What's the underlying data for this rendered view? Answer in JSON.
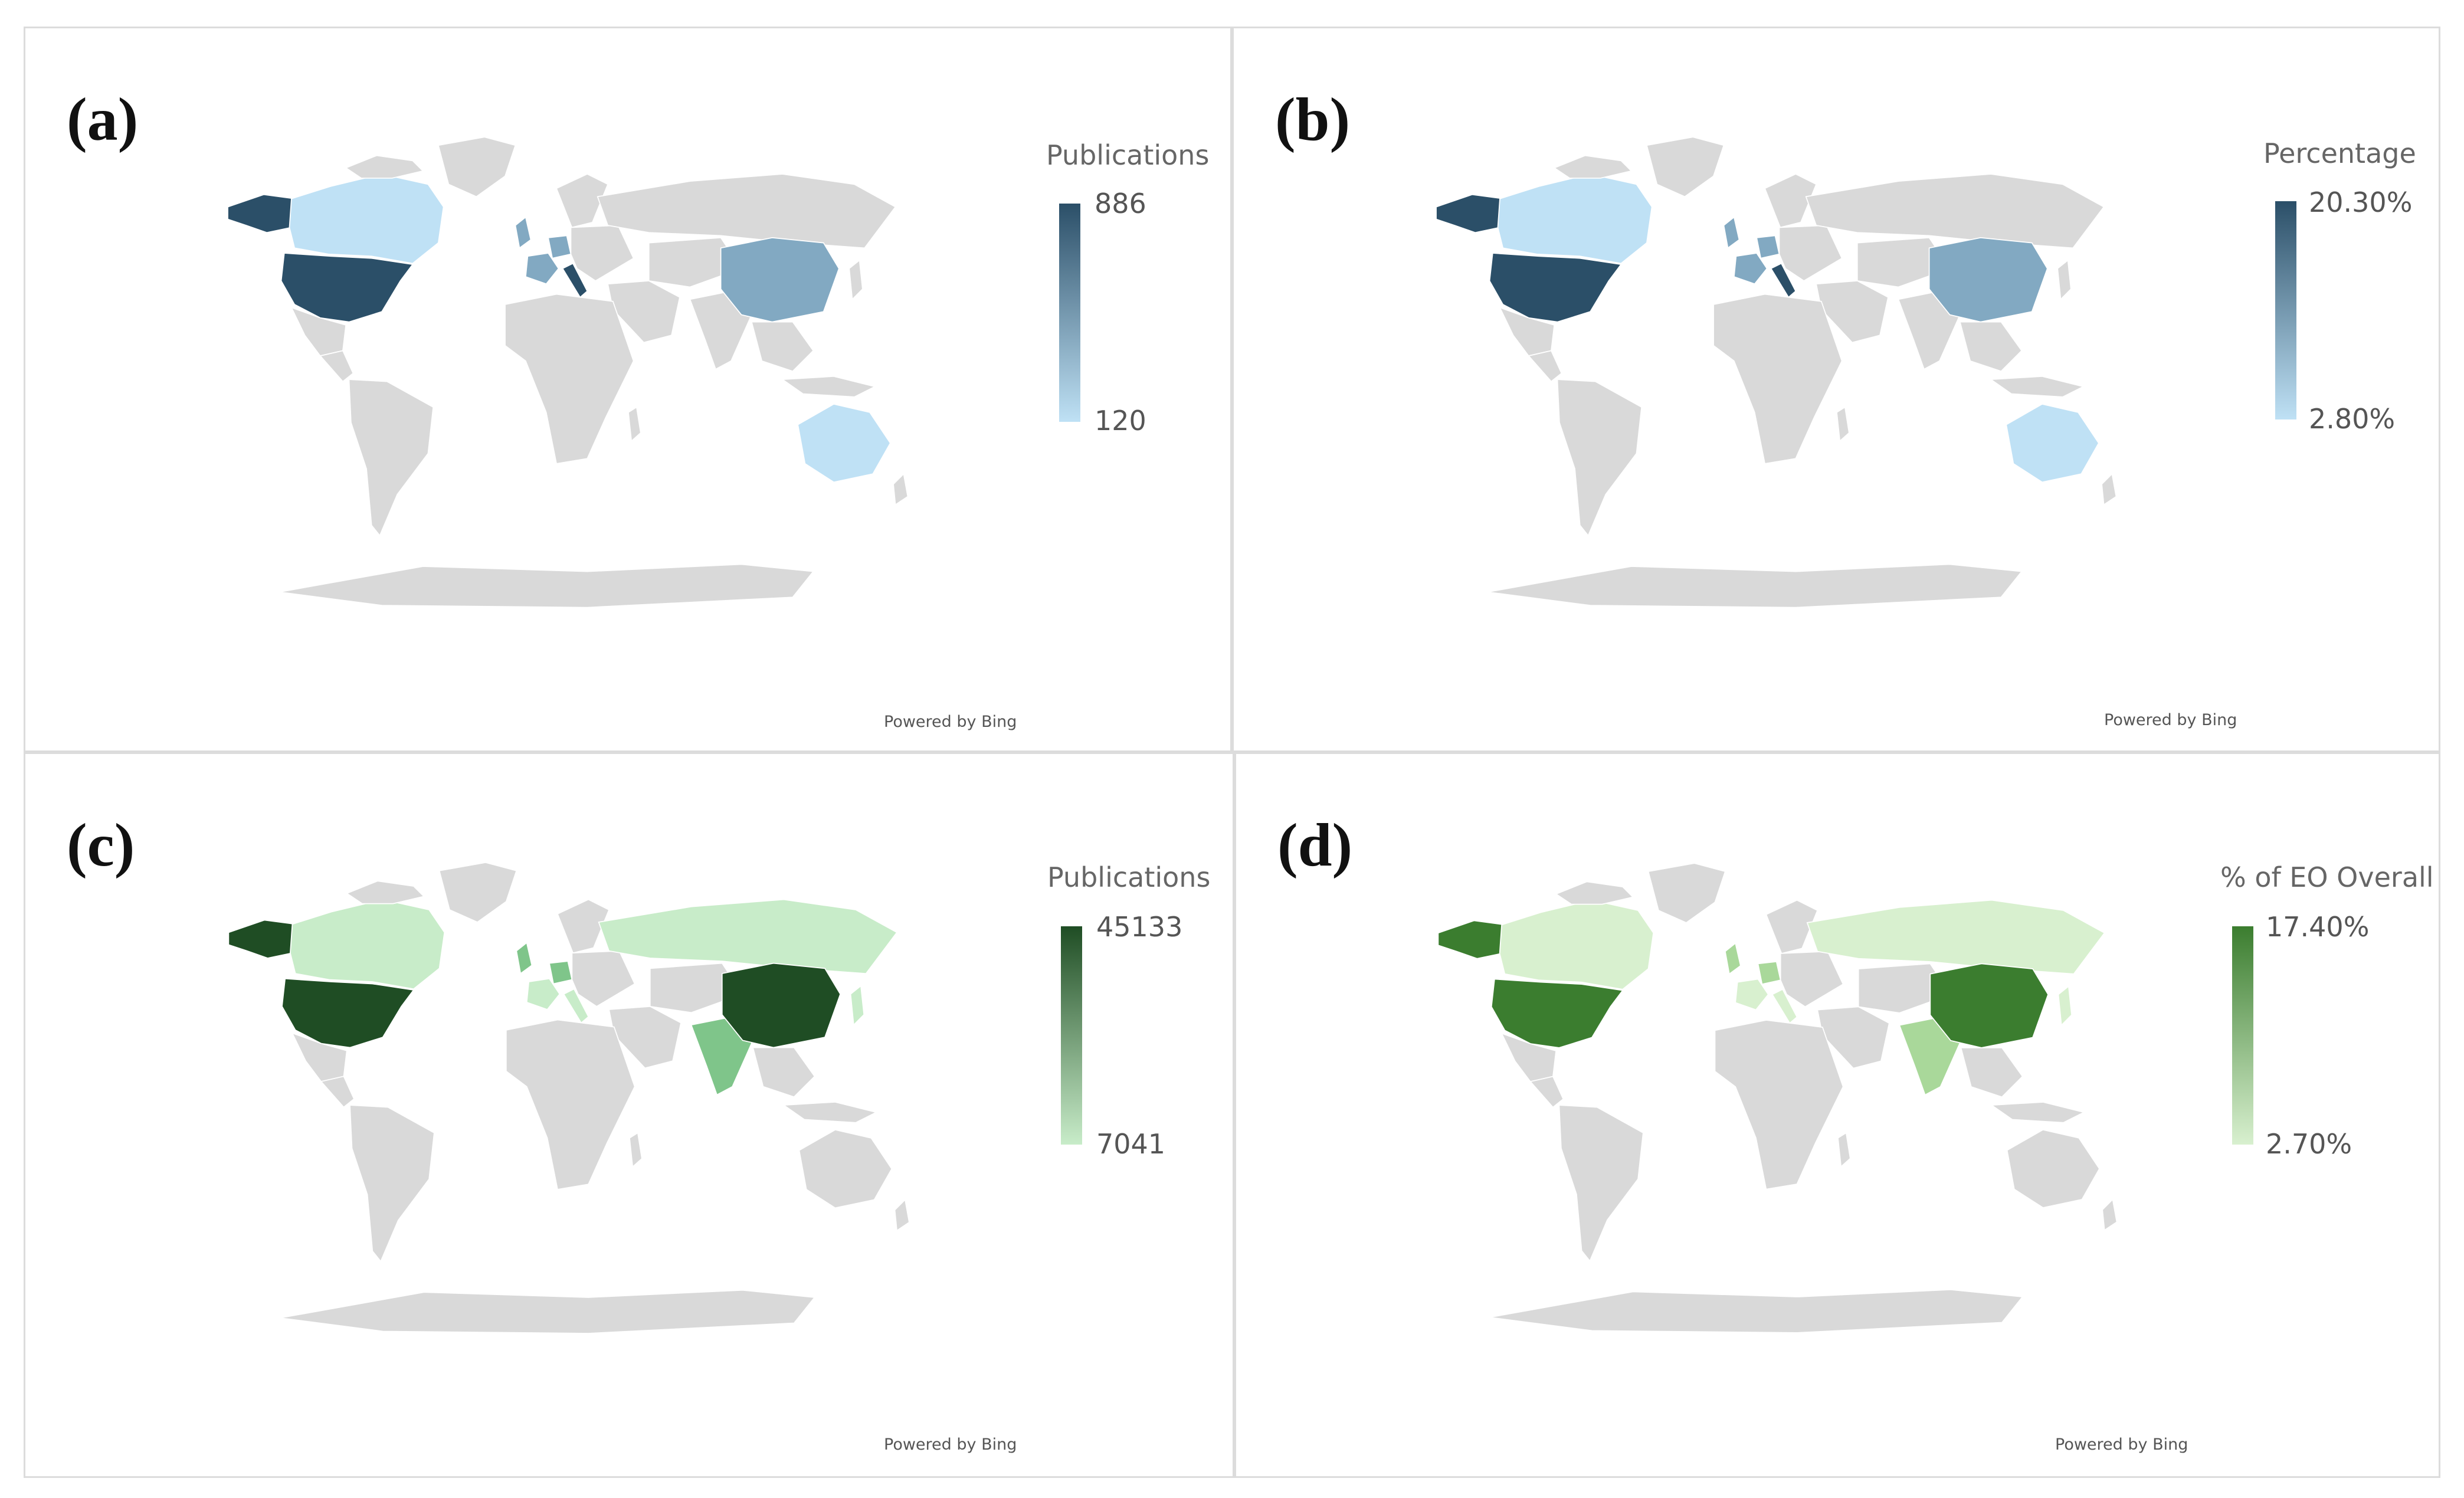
{
  "panels": [
    {
      "label": "(a)",
      "legend_title": "Publications",
      "legend_max": "886",
      "legend_min": "120",
      "credit": "Powered by Bing",
      "palette": {
        "max": "#2b4f68",
        "mid": "#82a9c2",
        "min": "#bfe1f5",
        "base": "#d9d9d9"
      }
    },
    {
      "label": "(b)",
      "legend_title": "Percentage",
      "legend_max": "20.30%",
      "legend_min": "2.80%",
      "credit": "Powered by Bing",
      "palette": {
        "max": "#2b4f68",
        "mid": "#82a9c2",
        "min": "#bfe1f5",
        "base": "#d9d9d9"
      }
    },
    {
      "label": "(c)",
      "legend_title": "Publications",
      "legend_max": "45133",
      "legend_min": "7041",
      "credit": "Powered by Bing",
      "palette": {
        "max": "#1f4d24",
        "mid": "#7fc58a",
        "min": "#c8ecc9",
        "base": "#d9d9d9"
      }
    },
    {
      "label": "(d)",
      "legend_title": "% of EO Overall",
      "legend_max": "17.40%",
      "legend_min": "2.70%",
      "credit": "Powered by Bing",
      "palette": {
        "max": "#3b7d2f",
        "mid": "#a9d89a",
        "min": "#d8f0cf",
        "base": "#d9d9d9"
      }
    }
  ],
  "regions": {
    "blue": {
      "alaska": "max",
      "canada": "min",
      "usa": "max",
      "uk": "mid",
      "france": "mid",
      "germany": "mid",
      "italy": "max",
      "china": "mid",
      "australia": "min"
    },
    "green": {
      "alaska": "max",
      "canada": "min",
      "usa": "max",
      "uk": "mid",
      "france": "min",
      "germany": "mid",
      "italy": "min",
      "russia": "min",
      "china": "max",
      "india": "mid",
      "japan": "min"
    }
  }
}
